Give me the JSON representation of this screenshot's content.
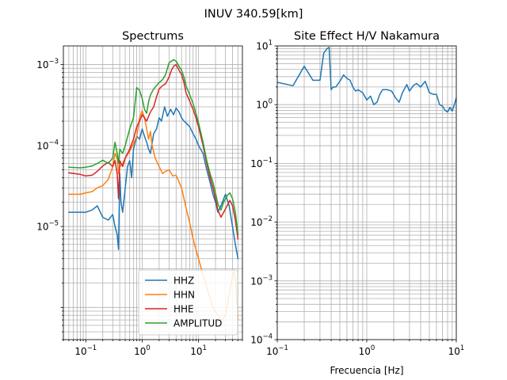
{
  "figure": {
    "suptitle": "INUV 340.59[km]"
  },
  "chart_data": [
    {
      "type": "line",
      "title": "Spectrums",
      "xlabel": "",
      "ylabel": "",
      "xscale": "log",
      "yscale": "log",
      "xlim": [
        0.04,
        60
      ],
      "ylim": [
        4e-07,
        0.0017
      ],
      "grid": "both (major and minor)",
      "legend": "lower-right",
      "x_tick_labels": [
        {
          "value": 0.1,
          "base": "10",
          "exp": "−1"
        },
        {
          "value": 1,
          "base": "10",
          "exp": "0"
        },
        {
          "value": 10,
          "base": "10",
          "exp": "1"
        }
      ],
      "y_tick_labels": [
        {
          "value": 1e-05,
          "base": "10",
          "exp": "−5"
        },
        {
          "value": 0.0001,
          "base": "10",
          "exp": "−4"
        },
        {
          "value": 0.001,
          "base": "10",
          "exp": "−3"
        }
      ],
      "series": [
        {
          "name": "HHZ",
          "color": "#1f77b4",
          "x": [
            0.05,
            0.1,
            0.13,
            0.16,
            0.2,
            0.25,
            0.3,
            0.33,
            0.36,
            0.38,
            0.4,
            0.42,
            0.45,
            0.5,
            0.55,
            0.6,
            0.65,
            0.7,
            0.8,
            0.9,
            1.0,
            1.1,
            1.2,
            1.3,
            1.4,
            1.6,
            1.8,
            2.0,
            2.2,
            2.5,
            2.8,
            3.2,
            3.6,
            4.0,
            4.5,
            5.0,
            5.5,
            6.0,
            7.0,
            8.0,
            9.0,
            10.0,
            12.0,
            14.0,
            16.0,
            18.0,
            20.0,
            22.0,
            25.0,
            30.0,
            35.0,
            40.0,
            45.0,
            50.0
          ],
          "y": [
            1.5e-05,
            1.5e-05,
            1.6e-05,
            1.8e-05,
            1.3e-05,
            1.2e-05,
            1.4e-05,
            1e-05,
            8e-06,
            5.2e-06,
            4.5e-05,
            2e-05,
            1.5e-05,
            3e-05,
            5.5e-05,
            6.5e-05,
            4e-05,
            9e-05,
            0.00013,
            0.00012,
            0.00016,
            0.00013,
            0.00011,
            9e-05,
            8e-05,
            0.00014,
            0.00016,
            0.00022,
            0.0002,
            0.0003,
            0.00023,
            0.00028,
            0.00024,
            0.00029,
            0.00026,
            0.00022,
            0.0002,
            0.00019,
            0.00017,
            0.00014,
            0.00012,
            0.0001,
            8e-05,
            5e-05,
            3.5e-05,
            2.5e-05,
            2e-05,
            1.5e-05,
            1.8e-05,
            2.5e-05,
            1.8e-05,
            1e-05,
            6e-06,
            4e-06
          ]
        },
        {
          "name": "HHN",
          "color": "#ff7f0e",
          "x": [
            0.05,
            0.08,
            0.1,
            0.13,
            0.16,
            0.2,
            0.25,
            0.3,
            0.33,
            0.36,
            0.38,
            0.4,
            0.45,
            0.5,
            0.6,
            0.7,
            0.8,
            0.9,
            1.0,
            1.1,
            1.2,
            1.3,
            1.4,
            1.5,
            1.7,
            2.0,
            2.3,
            2.6,
            3.0,
            3.5,
            4.0,
            5.0,
            6.0,
            7.0,
            8.0,
            10.0,
            12.0,
            15.0,
            18.0,
            22.0,
            26.0,
            30.0,
            34.0,
            38.0,
            42.0,
            46.0,
            50.0
          ],
          "y": [
            2.5e-05,
            2.5e-05,
            2.6e-05,
            2.7e-05,
            3e-05,
            3.2e-05,
            3.8e-05,
            5.5e-05,
            8e-05,
            7e-05,
            4.5e-05,
            5.5e-05,
            6e-05,
            7e-05,
            8.5e-05,
            0.000105,
            0.00013,
            0.00022,
            0.00027,
            0.00022,
            0.00016,
            0.00012,
            0.00015,
            0.0001,
            7e-05,
            5.5e-05,
            4.5e-05,
            4.8e-05,
            5e-05,
            4.2e-05,
            4.3e-05,
            3e-05,
            1.7e-05,
            1.1e-05,
            7e-06,
            4e-06,
            2.5e-06,
            1.5e-06,
            1e-06,
            8e-07,
            7e-07,
            8e-07,
            1.3e-06,
            2e-06,
            2.8e-06,
            2e-06,
            7e-07
          ]
        },
        {
          "name": "HHE",
          "color": "#d62728",
          "x": [
            0.05,
            0.08,
            0.1,
            0.13,
            0.16,
            0.2,
            0.25,
            0.3,
            0.33,
            0.36,
            0.38,
            0.4,
            0.45,
            0.5,
            0.6,
            0.7,
            0.8,
            0.9,
            1.0,
            1.1,
            1.2,
            1.3,
            1.4,
            1.6,
            1.8,
            2.0,
            2.3,
            2.6,
            3.0,
            3.3,
            3.6,
            4.0,
            4.5,
            5.0,
            5.5,
            6.0,
            7.0,
            8.0,
            9.0,
            10.0,
            12.0,
            14.0,
            16.0,
            18.0,
            20.0,
            22.0,
            25.0,
            28.0,
            32.0,
            36.0,
            40.0,
            45.0,
            50.0
          ],
          "y": [
            4.6e-05,
            4.4e-05,
            4.2e-05,
            4.3e-05,
            4.8e-05,
            5.6e-05,
            6.2e-05,
            5.5e-05,
            6.5e-05,
            4.5e-05,
            2.2e-05,
            6.5e-05,
            5.5e-05,
            7e-05,
            9e-05,
            0.00012,
            0.00017,
            0.0002,
            0.00024,
            0.00022,
            0.0002,
            0.00023,
            0.00026,
            0.0003,
            0.0004,
            0.0005,
            0.00055,
            0.00058,
            0.0007,
            0.00085,
            0.00095,
            0.001,
            0.00085,
            0.00075,
            0.0006,
            0.00045,
            0.00035,
            0.00028,
            0.00022,
            0.00017,
            0.0001,
            6e-05,
            4e-05,
            3e-05,
            2.2e-05,
            1.6e-05,
            1.3e-05,
            1.5e-05,
            1.8e-05,
            2.1e-05,
            1.8e-05,
            1.2e-05,
            7e-06
          ]
        },
        {
          "name": "AMPLITUD",
          "color": "#2ca02c",
          "x": [
            0.05,
            0.08,
            0.1,
            0.13,
            0.16,
            0.2,
            0.25,
            0.3,
            0.33,
            0.36,
            0.38,
            0.4,
            0.45,
            0.5,
            0.6,
            0.7,
            0.8,
            0.9,
            1.0,
            1.1,
            1.2,
            1.3,
            1.4,
            1.6,
            1.8,
            2.0,
            2.3,
            2.6,
            3.0,
            3.3,
            3.6,
            4.0,
            4.5,
            5.0,
            5.5,
            6.0,
            7.0,
            8.0,
            9.0,
            10.0,
            12.0,
            14.0,
            16.0,
            18.0,
            20.0,
            22.0,
            25.0,
            28.0,
            32.0,
            36.0,
            40.0,
            45.0,
            50.0
          ],
          "y": [
            5.4e-05,
            5.3e-05,
            5.4e-05,
            5.6e-05,
            6e-05,
            6.6e-05,
            6e-05,
            7e-05,
            0.00011,
            8e-05,
            6e-05,
            9e-05,
            8e-05,
            0.0001,
            0.00016,
            0.00022,
            0.00052,
            0.00048,
            0.00038,
            0.00028,
            0.00025,
            0.00035,
            0.00042,
            0.0005,
            0.00055,
            0.0006,
            0.00065,
            0.00075,
            0.00105,
            0.0011,
            0.00115,
            0.0011,
            0.00095,
            0.00085,
            0.0007,
            0.00055,
            0.00042,
            0.00033,
            0.00025,
            0.00019,
            0.00011,
            6.5e-05,
            4.5e-05,
            3.5e-05,
            2.6e-05,
            1.9e-05,
            1.6e-05,
            2e-05,
            2.4e-05,
            2.6e-05,
            2.2e-05,
            1.5e-05,
            8e-06
          ]
        }
      ]
    },
    {
      "type": "line",
      "title": "Site Effect H/V Nakamura",
      "xlabel": "Frecuencia [Hz]",
      "ylabel": "",
      "xscale": "log",
      "yscale": "log",
      "xlim": [
        0.1,
        10
      ],
      "ylim": [
        0.0001,
        10
      ],
      "grid": "both (major and minor)",
      "legend": "none",
      "x_tick_labels": [
        {
          "value": 0.1,
          "base": "10",
          "exp": "−1"
        },
        {
          "value": 1,
          "base": "10",
          "exp": "0"
        },
        {
          "value": 10,
          "base": "10",
          "exp": "1"
        }
      ],
      "y_tick_labels": [
        {
          "value": 0.0001,
          "base": "10",
          "exp": "−4"
        },
        {
          "value": 0.001,
          "base": "10",
          "exp": "−3"
        },
        {
          "value": 0.01,
          "base": "10",
          "exp": "−2"
        },
        {
          "value": 0.1,
          "base": "10",
          "exp": "−1"
        },
        {
          "value": 1,
          "base": "10",
          "exp": "0"
        },
        {
          "value": 10,
          "base": "10",
          "exp": "1"
        }
      ],
      "series": [
        {
          "name": "",
          "color": "#1f77b4",
          "x": [
            0.1,
            0.15,
            0.2,
            0.25,
            0.3,
            0.33,
            0.36,
            0.38,
            0.4,
            0.42,
            0.45,
            0.5,
            0.55,
            0.6,
            0.65,
            0.7,
            0.75,
            0.8,
            0.9,
            1.0,
            1.1,
            1.2,
            1.3,
            1.4,
            1.5,
            1.7,
            1.9,
            2.1,
            2.3,
            2.5,
            2.8,
            3.0,
            3.3,
            3.6,
            4.0,
            4.5,
            5.0,
            5.5,
            6.0,
            6.5,
            7.0,
            7.5,
            8.0,
            8.5,
            9.0,
            9.5,
            10.0
          ],
          "y": [
            2.4,
            2.1,
            4.5,
            2.6,
            2.6,
            7.5,
            9.0,
            9.5,
            1.8,
            2.0,
            2.0,
            2.5,
            3.2,
            2.8,
            2.6,
            2.0,
            1.7,
            1.8,
            1.6,
            1.2,
            1.4,
            1.0,
            1.1,
            1.5,
            1.8,
            1.8,
            1.7,
            1.3,
            1.1,
            1.6,
            2.2,
            1.7,
            2.1,
            2.3,
            2.0,
            2.5,
            1.6,
            1.5,
            1.5,
            1.0,
            0.95,
            0.8,
            0.75,
            0.9,
            0.78,
            1.0,
            1.3
          ]
        }
      ]
    }
  ]
}
